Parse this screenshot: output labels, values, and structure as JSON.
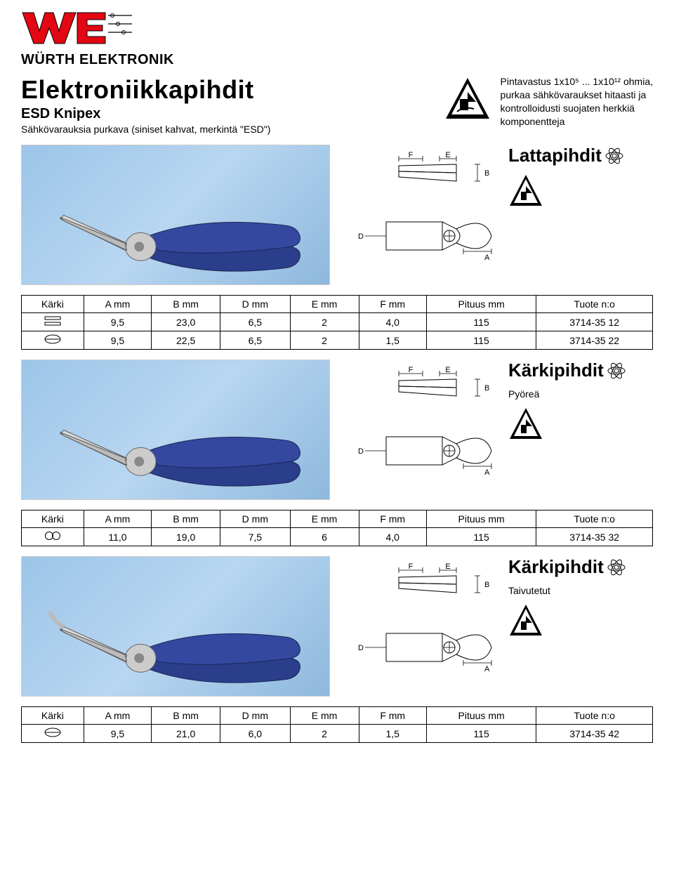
{
  "brand": "WÜRTH ELEKTRONIK",
  "header": {
    "title": "Elektroniikkapihdit",
    "subtitle": "ESD Knipex",
    "desc": "Sähkövarauksia purkava (siniset kahvat, merkintä \"ESD\")",
    "right_line1": "Pintavastus 1x10⁵ ... 1x10¹² ohmia,",
    "right_line2": "purkaa sähkövaraukset hitaasti ja",
    "right_line3": "kontrolloidusti suojaten herkkiä",
    "right_line4": "komponentteja"
  },
  "sections": [
    {
      "title": "Lattapihdit",
      "subtitle": ""
    },
    {
      "title": "Kärkipihdit",
      "subtitle": "Pyöreä"
    },
    {
      "title": "Kärkipihdit",
      "subtitle": "Taivutetut"
    }
  ],
  "table_headers": {
    "tip": "Kärki",
    "a": "A mm",
    "b": "B mm",
    "d": "D mm",
    "e": "E mm",
    "f": "F mm",
    "len": "Pituus mm",
    "prod": "Tuote n:o"
  },
  "tables": [
    {
      "rows": [
        {
          "tip_type": "flat",
          "a": "9,5",
          "b": "23,0",
          "d": "6,5",
          "e": "2",
          "f": "4,0",
          "len": "115",
          "prod": "3714-35 12"
        },
        {
          "tip_type": "halfround",
          "a": "9,5",
          "b": "22,5",
          "d": "6,5",
          "e": "2",
          "f": "1,5",
          "len": "115",
          "prod": "3714-35 22"
        }
      ]
    },
    {
      "rows": [
        {
          "tip_type": "round",
          "a": "11,0",
          "b": "19,0",
          "d": "7,5",
          "e": "6",
          "f": "4,0",
          "len": "115",
          "prod": "3714-35 32"
        }
      ]
    },
    {
      "rows": [
        {
          "tip_type": "halfround",
          "a": "9,5",
          "b": "21,0",
          "d": "6,0",
          "e": "2",
          "f": "1,5",
          "len": "115",
          "prod": "3714-35 42"
        }
      ]
    }
  ],
  "colors": {
    "red": "#e30613",
    "blue_handle": "#2b3e8c",
    "photo_bg1": "#9cc5e8",
    "black": "#000000"
  }
}
